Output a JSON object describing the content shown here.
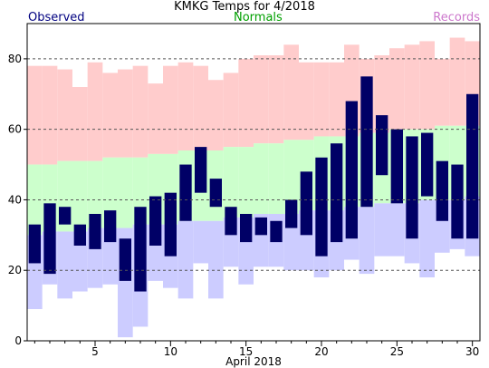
{
  "header": {
    "title": "KMKG Temps for 4/2018",
    "observed_label": "Observed",
    "normals_label": "Normals",
    "records_label": "Records"
  },
  "colors": {
    "observed": "#000066",
    "normals": "#ccffcc",
    "record_high": "#ffcccc",
    "record_low": "#ccccff",
    "grid": "#555555"
  },
  "chart_data": {
    "type": "bar",
    "title": "KMKG Temps for 4/2018",
    "xlabel": "April 2018",
    "ylabel": "",
    "xlim": [
      1,
      30
    ],
    "ylim": [
      0,
      90
    ],
    "x_ticks": [
      5,
      10,
      15,
      20,
      25,
      30
    ],
    "y_ticks": [
      0,
      20,
      40,
      60,
      80
    ],
    "grid": "dashed horizontal at 20, 40, 60, 80",
    "days": [
      1,
      2,
      3,
      4,
      5,
      6,
      7,
      8,
      9,
      10,
      11,
      12,
      13,
      14,
      15,
      16,
      17,
      18,
      19,
      20,
      21,
      22,
      23,
      24,
      25,
      26,
      27,
      28,
      29,
      30
    ],
    "series": [
      {
        "name": "Observed",
        "high": [
          33,
          39,
          38,
          33,
          36,
          37,
          29,
          38,
          41,
          42,
          50,
          55,
          46,
          38,
          36,
          35,
          34,
          40,
          48,
          52,
          56,
          68,
          75,
          64,
          60,
          58,
          59,
          51,
          50,
          70
        ],
        "low": [
          22,
          19,
          33,
          27,
          26,
          28,
          17,
          14,
          27,
          24,
          34,
          42,
          38,
          30,
          28,
          30,
          28,
          32,
          30,
          24,
          28,
          29,
          38,
          47,
          39,
          29,
          41,
          34,
          29,
          29
        ]
      },
      {
        "name": "Normals",
        "high": [
          50,
          50,
          51,
          51,
          51,
          52,
          52,
          52,
          53,
          53,
          54,
          54,
          54,
          55,
          55,
          56,
          56,
          57,
          57,
          58,
          58,
          58,
          59,
          59,
          60,
          60,
          60,
          61,
          61,
          61
        ],
        "low": [
          30,
          31,
          31,
          31,
          32,
          32,
          32,
          33,
          33,
          33,
          34,
          34,
          34,
          35,
          35,
          36,
          36,
          36,
          37,
          37,
          37,
          38,
          38,
          39,
          39,
          39,
          40,
          40,
          40,
          41
        ]
      },
      {
        "name": "Records",
        "high": [
          78,
          78,
          77,
          72,
          79,
          76,
          77,
          78,
          73,
          78,
          79,
          78,
          74,
          76,
          80,
          81,
          81,
          84,
          79,
          79,
          79,
          84,
          80,
          81,
          83,
          84,
          85,
          80,
          86,
          85
        ],
        "low": [
          9,
          16,
          12,
          14,
          15,
          16,
          1,
          4,
          17,
          15,
          12,
          22,
          12,
          21,
          16,
          21,
          21,
          20,
          20,
          18,
          20,
          23,
          19,
          24,
          24,
          22,
          18,
          25,
          26,
          24
        ]
      }
    ]
  }
}
